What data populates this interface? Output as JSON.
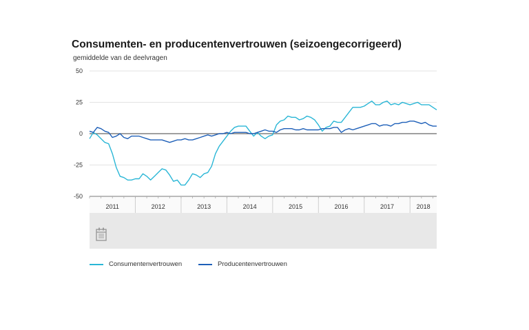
{
  "header": {
    "title": "Consumenten- en producentenvertrouwen (seizoengecorrigeerd)",
    "subtitle": "gemiddelde van de deelvragen"
  },
  "legend": {
    "consumer": "Consumentenvertrouwen",
    "producer": "Producentenvertrouwen"
  },
  "navigator": {
    "icon": "calendar-icon"
  },
  "colors": {
    "consumer": "#29b6d6",
    "producer": "#1d5fb8",
    "zero_line": "#666666",
    "grid": "#e3e3e3",
    "navigator_bg": "#e8e8e8"
  },
  "chart_data": {
    "type": "line",
    "title": "Consumenten- en producentenvertrouwen (seizoengecorrigeerd)",
    "ylabel": "gemiddelde van de deelvragen",
    "ylim": [
      -50,
      50
    ],
    "yticks": [
      50,
      25,
      0,
      -25,
      -50
    ],
    "years": [
      "2011",
      "2012",
      "2013",
      "2014",
      "2015",
      "2016",
      "2017",
      "2018"
    ],
    "x_start": "2011-01",
    "x_end": "2018-10",
    "series": [
      {
        "name": "Consumentenvertrouwen",
        "values": [
          -4,
          1,
          -1,
          -4,
          -7,
          -8,
          -16,
          -27,
          -34,
          -35,
          -37,
          -37,
          -36,
          -36,
          -32,
          -34,
          -37,
          -34,
          -31,
          -28,
          -29,
          -33,
          -38,
          -37,
          -41,
          -41,
          -37,
          -32,
          -33,
          -35,
          -32,
          -31,
          -26,
          -16,
          -10,
          -6,
          -2,
          2,
          5,
          6,
          6,
          6,
          2,
          -2,
          1,
          -2,
          -4,
          -2,
          -1,
          7,
          10,
          11,
          14,
          13,
          13,
          11,
          12,
          14,
          13,
          11,
          7,
          2,
          5,
          6,
          10,
          9,
          9,
          13,
          17,
          21,
          21,
          21,
          22,
          24,
          26,
          23,
          23,
          25,
          26,
          23,
          24,
          23,
          25,
          24,
          23,
          24,
          25,
          23,
          23,
          23,
          21,
          19
        ]
      },
      {
        "name": "Producentenvertrouwen",
        "values": [
          2,
          1,
          5,
          4,
          2,
          1,
          -3,
          -2,
          0,
          -3,
          -4,
          -2,
          -2,
          -2,
          -3,
          -4,
          -5,
          -5,
          -5,
          -5,
          -6,
          -7,
          -6,
          -5,
          -5,
          -4,
          -5,
          -5,
          -4,
          -3,
          -2,
          -1,
          -2,
          -1,
          0,
          0,
          1,
          0,
          1,
          1,
          1,
          1,
          0,
          0,
          1,
          2,
          3,
          2,
          2,
          1,
          3,
          4,
          4,
          4,
          3,
          3,
          4,
          3,
          3,
          3,
          3,
          4,
          4,
          4,
          5,
          5,
          1,
          3,
          4,
          3,
          4,
          5,
          6,
          7,
          8,
          8,
          6,
          7,
          7,
          6,
          8,
          8,
          9,
          9,
          10,
          10,
          9,
          8,
          9,
          7,
          6,
          6
        ]
      }
    ]
  }
}
